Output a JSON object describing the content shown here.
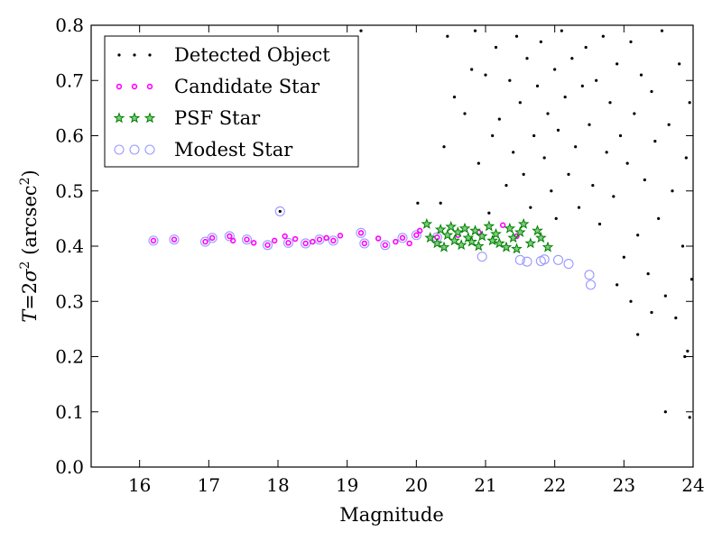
{
  "chart_data": {
    "type": "scatter",
    "title": "",
    "xlabel": "Magnitude",
    "ylabel": "T = 2σ² (arcsec²)",
    "ylabel_parts": {
      "italic_T": "T",
      "eq": "=2",
      "sigma": "σ",
      "sup1": "2",
      "unit": " (arcsec",
      "sup2": "2",
      "close": ")"
    },
    "xlim": [
      15.3,
      24
    ],
    "ylim": [
      0,
      0.8
    ],
    "xticks": [
      16,
      17,
      18,
      19,
      20,
      21,
      22,
      23,
      24
    ],
    "yticks": [
      0.0,
      0.1,
      0.2,
      0.3,
      0.4,
      0.5,
      0.6,
      0.7,
      0.8
    ],
    "xtick_labels": [
      "16",
      "17",
      "18",
      "19",
      "20",
      "21",
      "22",
      "23",
      "24"
    ],
    "ytick_labels": [
      "0.0",
      "0.1",
      "0.2",
      "0.3",
      "0.4",
      "0.5",
      "0.6",
      "0.7",
      "0.8"
    ],
    "grid": false,
    "legend_position": "top-left",
    "series": [
      {
        "name": "Detected Object",
        "marker": "dot",
        "color": "#000000",
        "points": [
          [
            18.03,
            0.463
          ],
          [
            19.2,
            0.79
          ],
          [
            20.02,
            0.478
          ],
          [
            20.35,
            0.478
          ],
          [
            20.4,
            0.58
          ],
          [
            20.45,
            0.78
          ],
          [
            20.55,
            0.67
          ],
          [
            20.7,
            0.64
          ],
          [
            20.8,
            0.72
          ],
          [
            20.85,
            0.79
          ],
          [
            20.9,
            0.55
          ],
          [
            21.0,
            0.71
          ],
          [
            21.05,
            0.46
          ],
          [
            21.1,
            0.6
          ],
          [
            21.15,
            0.76
          ],
          [
            21.2,
            0.63
          ],
          [
            21.3,
            0.51
          ],
          [
            21.35,
            0.7
          ],
          [
            21.4,
            0.57
          ],
          [
            21.45,
            0.78
          ],
          [
            21.5,
            0.66
          ],
          [
            21.55,
            0.53
          ],
          [
            21.6,
            0.74
          ],
          [
            21.65,
            0.47
          ],
          [
            21.7,
            0.6
          ],
          [
            21.75,
            0.69
          ],
          [
            21.8,
            0.77
          ],
          [
            21.85,
            0.56
          ],
          [
            21.9,
            0.64
          ],
          [
            21.95,
            0.5
          ],
          [
            22.0,
            0.72
          ],
          [
            22.02,
            0.45
          ],
          [
            22.05,
            0.61
          ],
          [
            22.1,
            0.79
          ],
          [
            22.15,
            0.67
          ],
          [
            22.2,
            0.53
          ],
          [
            22.25,
            0.74
          ],
          [
            22.3,
            0.58
          ],
          [
            22.35,
            0.47
          ],
          [
            22.4,
            0.69
          ],
          [
            22.45,
            0.76
          ],
          [
            22.5,
            0.62
          ],
          [
            22.55,
            0.51
          ],
          [
            22.6,
            0.7
          ],
          [
            22.65,
            0.44
          ],
          [
            22.7,
            0.78
          ],
          [
            22.75,
            0.57
          ],
          [
            22.8,
            0.66
          ],
          [
            22.85,
            0.49
          ],
          [
            22.9,
            0.73
          ],
          [
            22.95,
            0.6
          ],
          [
            23.0,
            0.38
          ],
          [
            23.05,
            0.55
          ],
          [
            23.1,
            0.77
          ],
          [
            23.15,
            0.64
          ],
          [
            23.2,
            0.42
          ],
          [
            23.25,
            0.71
          ],
          [
            23.3,
            0.52
          ],
          [
            23.35,
            0.35
          ],
          [
            23.4,
            0.68
          ],
          [
            23.45,
            0.59
          ],
          [
            23.5,
            0.45
          ],
          [
            23.55,
            0.79
          ],
          [
            23.6,
            0.31
          ],
          [
            23.65,
            0.62
          ],
          [
            23.7,
            0.5
          ],
          [
            23.75,
            0.27
          ],
          [
            23.8,
            0.73
          ],
          [
            23.85,
            0.4
          ],
          [
            23.9,
            0.56
          ],
          [
            23.92,
            0.21
          ],
          [
            23.95,
            0.66
          ],
          [
            23.98,
            0.34
          ],
          [
            22.9,
            0.33
          ],
          [
            23.1,
            0.3
          ],
          [
            23.2,
            0.24
          ],
          [
            23.4,
            0.28
          ],
          [
            23.6,
            0.1
          ],
          [
            23.95,
            0.09
          ],
          [
            23.88,
            0.2
          ]
        ]
      },
      {
        "name": "Candidate Star",
        "marker": "small-circle",
        "color": "#ff00ff",
        "points": [
          [
            16.2,
            0.41
          ],
          [
            16.5,
            0.412
          ],
          [
            16.95,
            0.408
          ],
          [
            17.05,
            0.415
          ],
          [
            17.3,
            0.418
          ],
          [
            17.35,
            0.41
          ],
          [
            17.55,
            0.412
          ],
          [
            17.65,
            0.406
          ],
          [
            17.85,
            0.402
          ],
          [
            17.95,
            0.41
          ],
          [
            18.1,
            0.418
          ],
          [
            18.15,
            0.406
          ],
          [
            18.25,
            0.413
          ],
          [
            18.4,
            0.405
          ],
          [
            18.5,
            0.408
          ],
          [
            18.6,
            0.412
          ],
          [
            18.7,
            0.415
          ],
          [
            18.8,
            0.41
          ],
          [
            18.9,
            0.419
          ],
          [
            19.2,
            0.424
          ],
          [
            19.25,
            0.405
          ],
          [
            19.45,
            0.414
          ],
          [
            19.55,
            0.402
          ],
          [
            19.7,
            0.408
          ],
          [
            19.8,
            0.415
          ],
          [
            19.9,
            0.405
          ],
          [
            20.0,
            0.42
          ],
          [
            20.05,
            0.428
          ],
          [
            20.3,
            0.416
          ],
          [
            20.6,
            0.42
          ],
          [
            20.9,
            0.425
          ],
          [
            21.25,
            0.438
          ],
          [
            21.45,
            0.418
          ]
        ]
      },
      {
        "name": "PSF Star",
        "marker": "star",
        "color": "#008000",
        "points": [
          [
            20.15,
            0.44
          ],
          [
            20.2,
            0.415
          ],
          [
            20.3,
            0.405
          ],
          [
            20.35,
            0.43
          ],
          [
            20.4,
            0.398
          ],
          [
            20.45,
            0.42
          ],
          [
            20.5,
            0.435
          ],
          [
            20.55,
            0.41
          ],
          [
            20.6,
            0.425
          ],
          [
            20.65,
            0.402
          ],
          [
            20.7,
            0.432
          ],
          [
            20.75,
            0.415
          ],
          [
            20.8,
            0.408
          ],
          [
            20.85,
            0.428
          ],
          [
            20.9,
            0.4
          ],
          [
            20.95,
            0.418
          ],
          [
            21.05,
            0.436
          ],
          [
            21.1,
            0.41
          ],
          [
            21.15,
            0.422
          ],
          [
            21.2,
            0.405
          ],
          [
            21.3,
            0.398
          ],
          [
            21.35,
            0.432
          ],
          [
            21.4,
            0.415
          ],
          [
            21.45,
            0.395
          ],
          [
            21.5,
            0.425
          ],
          [
            21.55,
            0.44
          ],
          [
            21.65,
            0.405
          ],
          [
            21.75,
            0.428
          ],
          [
            21.8,
            0.415
          ],
          [
            21.9,
            0.398
          ]
        ]
      },
      {
        "name": "Modest Star",
        "marker": "open-circle",
        "color": "#9999ff",
        "points": [
          [
            16.2,
            0.41
          ],
          [
            16.5,
            0.412
          ],
          [
            16.95,
            0.408
          ],
          [
            17.05,
            0.415
          ],
          [
            17.3,
            0.418
          ],
          [
            17.55,
            0.412
          ],
          [
            17.85,
            0.402
          ],
          [
            18.03,
            0.463
          ],
          [
            18.15,
            0.406
          ],
          [
            18.4,
            0.405
          ],
          [
            18.6,
            0.412
          ],
          [
            18.8,
            0.41
          ],
          [
            19.2,
            0.424
          ],
          [
            19.25,
            0.405
          ],
          [
            19.55,
            0.402
          ],
          [
            19.8,
            0.415
          ],
          [
            20.0,
            0.42
          ],
          [
            20.3,
            0.416
          ],
          [
            20.95,
            0.381
          ],
          [
            21.5,
            0.375
          ],
          [
            21.6,
            0.372
          ],
          [
            21.8,
            0.373
          ],
          [
            21.85,
            0.376
          ],
          [
            22.05,
            0.375
          ],
          [
            22.2,
            0.368
          ],
          [
            22.5,
            0.348
          ],
          [
            22.52,
            0.33
          ]
        ]
      }
    ]
  }
}
